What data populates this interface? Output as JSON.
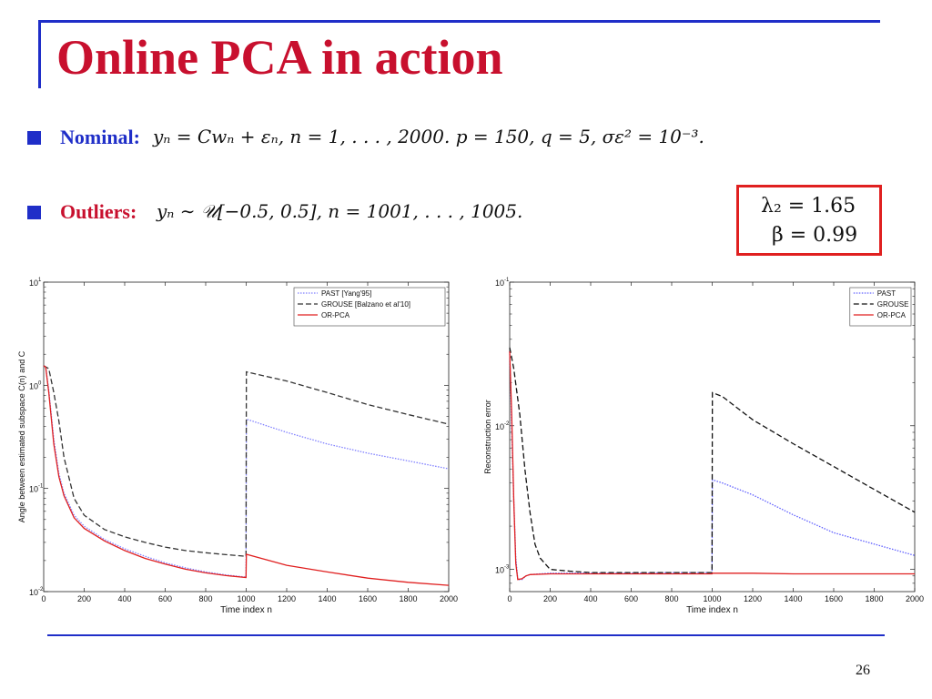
{
  "slide": {
    "title": "Online PCA in action",
    "page_number": "26",
    "accent_blue": "#1f2ec8",
    "accent_red": "#c8102e"
  },
  "bullets": [
    {
      "label": "Nominal:",
      "label_color": "#1f2ec8",
      "math": "yₙ = Cwₙ + εₙ,   n = 1, . . . , 2000.  p = 150,  q = 5,  σε² = 10⁻³."
    },
    {
      "label": "Outliers:",
      "label_color": "#c8102e",
      "math": "yₙ ∼ 𝒰[−0.5, 0.5],   n = 1001, . . . , 1005."
    }
  ],
  "params_box": {
    "line1": "λ₂ = 1.65",
    "line2": "β = 0.99"
  },
  "chart_data": [
    {
      "type": "line",
      "xlabel": "Time index n",
      "ylabel": "Angle between estimated subspace C(n) and C",
      "xlim": [
        0,
        2000
      ],
      "ylim": [
        0.01,
        10
      ],
      "y_scale": "log",
      "x_ticks": [
        0,
        200,
        400,
        600,
        800,
        1000,
        1200,
        1400,
        1600,
        1800,
        2000
      ],
      "y_ticks": [
        {
          "value": 0.01,
          "base": "10",
          "exp": "-2"
        },
        {
          "value": 0.1,
          "base": "10",
          "exp": "-1"
        },
        {
          "value": 1,
          "base": "10",
          "exp": "0"
        },
        {
          "value": 10,
          "base": "10",
          "exp": "1"
        }
      ],
      "legend_position": "top-right",
      "grid": false,
      "series": [
        {
          "name": "PAST [Yang'95]",
          "color": "#8080ff",
          "dash": "dotted",
          "x": [
            0,
            10,
            25,
            50,
            75,
            100,
            150,
            200,
            300,
            400,
            500,
            600,
            700,
            800,
            900,
            999,
            1001,
            1200,
            1400,
            1600,
            1800,
            2000
          ],
          "y": [
            1.55,
            1.5,
            0.9,
            0.3,
            0.14,
            0.09,
            0.055,
            0.043,
            0.032,
            0.026,
            0.022,
            0.019,
            0.017,
            0.0155,
            0.0145,
            0.0138,
            0.47,
            0.35,
            0.27,
            0.22,
            0.185,
            0.155
          ]
        },
        {
          "name": "GROUSE [Balzano et al'10]",
          "color": "#333333",
          "dash": "dashed",
          "x": [
            0,
            25,
            50,
            75,
            100,
            150,
            200,
            300,
            400,
            500,
            600,
            700,
            800,
            900,
            999,
            1001,
            1200,
            1400,
            1600,
            1800,
            2000
          ],
          "y": [
            1.55,
            1.45,
            0.85,
            0.45,
            0.2,
            0.08,
            0.055,
            0.04,
            0.034,
            0.03,
            0.027,
            0.025,
            0.0238,
            0.0228,
            0.022,
            1.35,
            1.1,
            0.85,
            0.65,
            0.52,
            0.42
          ]
        },
        {
          "name": "OR-PCA",
          "color": "#e02020",
          "dash": "solid",
          "x": [
            0,
            10,
            25,
            50,
            75,
            100,
            150,
            200,
            300,
            400,
            500,
            600,
            700,
            800,
            900,
            999,
            1001,
            1200,
            1400,
            1600,
            1800,
            2000
          ],
          "y": [
            1.55,
            1.5,
            0.85,
            0.27,
            0.13,
            0.085,
            0.052,
            0.041,
            0.031,
            0.025,
            0.021,
            0.0185,
            0.0165,
            0.0152,
            0.0143,
            0.0137,
            0.023,
            0.018,
            0.0155,
            0.0135,
            0.0123,
            0.0115
          ]
        }
      ]
    },
    {
      "type": "line",
      "xlabel": "Time index n",
      "ylabel": "Reconstruction error",
      "xlim": [
        0,
        2000
      ],
      "ylim": [
        0.0007,
        0.1
      ],
      "y_scale": "log",
      "x_ticks": [
        0,
        200,
        400,
        600,
        800,
        1000,
        1200,
        1400,
        1600,
        1800,
        2000
      ],
      "y_ticks": [
        {
          "value": 0.001,
          "base": "10",
          "exp": "-3"
        },
        {
          "value": 0.01,
          "base": "10",
          "exp": "-2"
        },
        {
          "value": 0.1,
          "base": "10",
          "exp": "-1"
        }
      ],
      "legend_position": "top-right",
      "grid": false,
      "series": [
        {
          "name": "PAST",
          "color": "#6060ff",
          "dash": "dotted",
          "x": [
            0,
            10,
            20,
            30,
            40,
            60,
            80,
            100,
            150,
            200,
            400,
            600,
            800,
            999,
            1001,
            1050,
            1200,
            1400,
            1600,
            1800,
            2000
          ],
          "y": [
            0.033,
            0.01,
            0.003,
            0.0012,
            0.00085,
            0.00085,
            0.0009,
            0.00092,
            0.00093,
            0.00094,
            0.00094,
            0.00094,
            0.00095,
            0.00095,
            0.0042,
            0.004,
            0.0033,
            0.0024,
            0.0018,
            0.0015,
            0.00125
          ]
        },
        {
          "name": "GROUSE",
          "color": "#111111",
          "dash": "dashed",
          "x": [
            0,
            20,
            50,
            75,
            100,
            125,
            150,
            200,
            300,
            400,
            600,
            800,
            999,
            1001,
            1050,
            1200,
            1400,
            1600,
            1800,
            2000
          ],
          "y": [
            0.035,
            0.025,
            0.012,
            0.005,
            0.0025,
            0.0015,
            0.0012,
            0.001,
            0.00097,
            0.00095,
            0.00095,
            0.00095,
            0.00095,
            0.017,
            0.016,
            0.011,
            0.0075,
            0.0052,
            0.0036,
            0.0025
          ]
        },
        {
          "name": "OR-PCA",
          "color": "#e02020",
          "dash": "solid",
          "x": [
            0,
            10,
            20,
            30,
            40,
            60,
            80,
            100,
            200,
            400,
            600,
            800,
            999,
            1001,
            1200,
            1400,
            1600,
            1800,
            2000
          ],
          "y": [
            0.033,
            0.012,
            0.003,
            0.0011,
            0.00085,
            0.00086,
            0.0009,
            0.00092,
            0.00093,
            0.00093,
            0.00093,
            0.00093,
            0.00093,
            0.00094,
            0.00094,
            0.00093,
            0.00093,
            0.00093,
            0.00093
          ]
        }
      ]
    }
  ]
}
